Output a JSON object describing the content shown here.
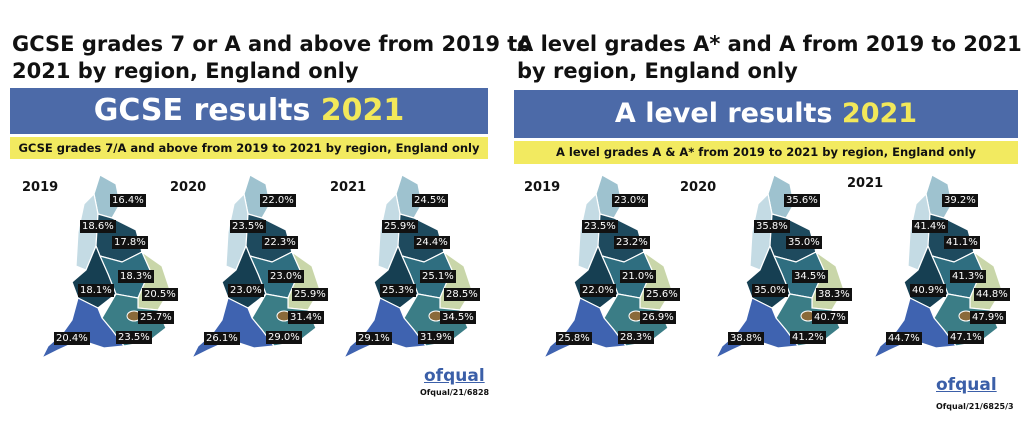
{
  "panels": [
    {
      "id": "gcse",
      "title_line1": "GCSE grades 7 or A and above from 2019 to",
      "title_line2": "2021 by region, England only",
      "banner_text": "GCSE results",
      "banner_year": "2021",
      "strip_text": "GCSE grades 7/A and above from 2019 to 2021 by region, England only",
      "maps": [
        {
          "year": "2019",
          "values": [
            "16.4%",
            "18.6%",
            "17.8%",
            "18.3%",
            "18.1%",
            "20.5%",
            "25.7%",
            "20.4%",
            "23.5%"
          ]
        },
        {
          "year": "2020",
          "values": [
            "22.0%",
            "23.5%",
            "22.3%",
            "23.0%",
            "23.0%",
            "25.9%",
            "31.4%",
            "26.1%",
            "29.0%"
          ]
        },
        {
          "year": "2021",
          "values": [
            "24.5%",
            "25.9%",
            "24.4%",
            "25.1%",
            "25.3%",
            "28.5%",
            "34.5%",
            "29.1%",
            "31.9%"
          ]
        }
      ],
      "logo": "ofqual",
      "reference": "Ofqual/21/6828"
    },
    {
      "id": "alevel",
      "title_line1": "A level grades A* and A from 2019 to 2021",
      "title_line2": "by region, England only",
      "banner_text": "A level results",
      "banner_year": "2021",
      "strip_text": "A level grades A & A* from 2019 to 2021 by region, England only",
      "maps": [
        {
          "year": "2019",
          "values": [
            "23.0%",
            "23.5%",
            "23.2%",
            "21.0%",
            "22.0%",
            "25.6%",
            "26.9%",
            "25.8%",
            "28.3%"
          ]
        },
        {
          "year": "2020",
          "values": [
            "35.6%",
            "35.8%",
            "35.0%",
            "34.5%",
            "35.0%",
            "38.3%",
            "40.7%",
            "38.8%",
            "41.2%"
          ]
        },
        {
          "year": "2021",
          "values": [
            "39.2%",
            "41.4%",
            "41.1%",
            "41.3%",
            "40.9%",
            "44.8%",
            "47.9%",
            "44.7%",
            "47.1%"
          ]
        }
      ],
      "logo": "ofqual",
      "reference": "Ofqual/21/6825/3"
    }
  ],
  "region_colors": {
    "north_east": "#9ec2cf",
    "north_west": "#c4dbe4",
    "yorkshire": "#1e4a5e",
    "east_midlands": "#2f6e80",
    "west_midlands": "#163f52",
    "east": "#c9d6a9",
    "london": "#8a6a3a",
    "south_west": "#3f63b0",
    "south_east": "#3b7d86"
  }
}
